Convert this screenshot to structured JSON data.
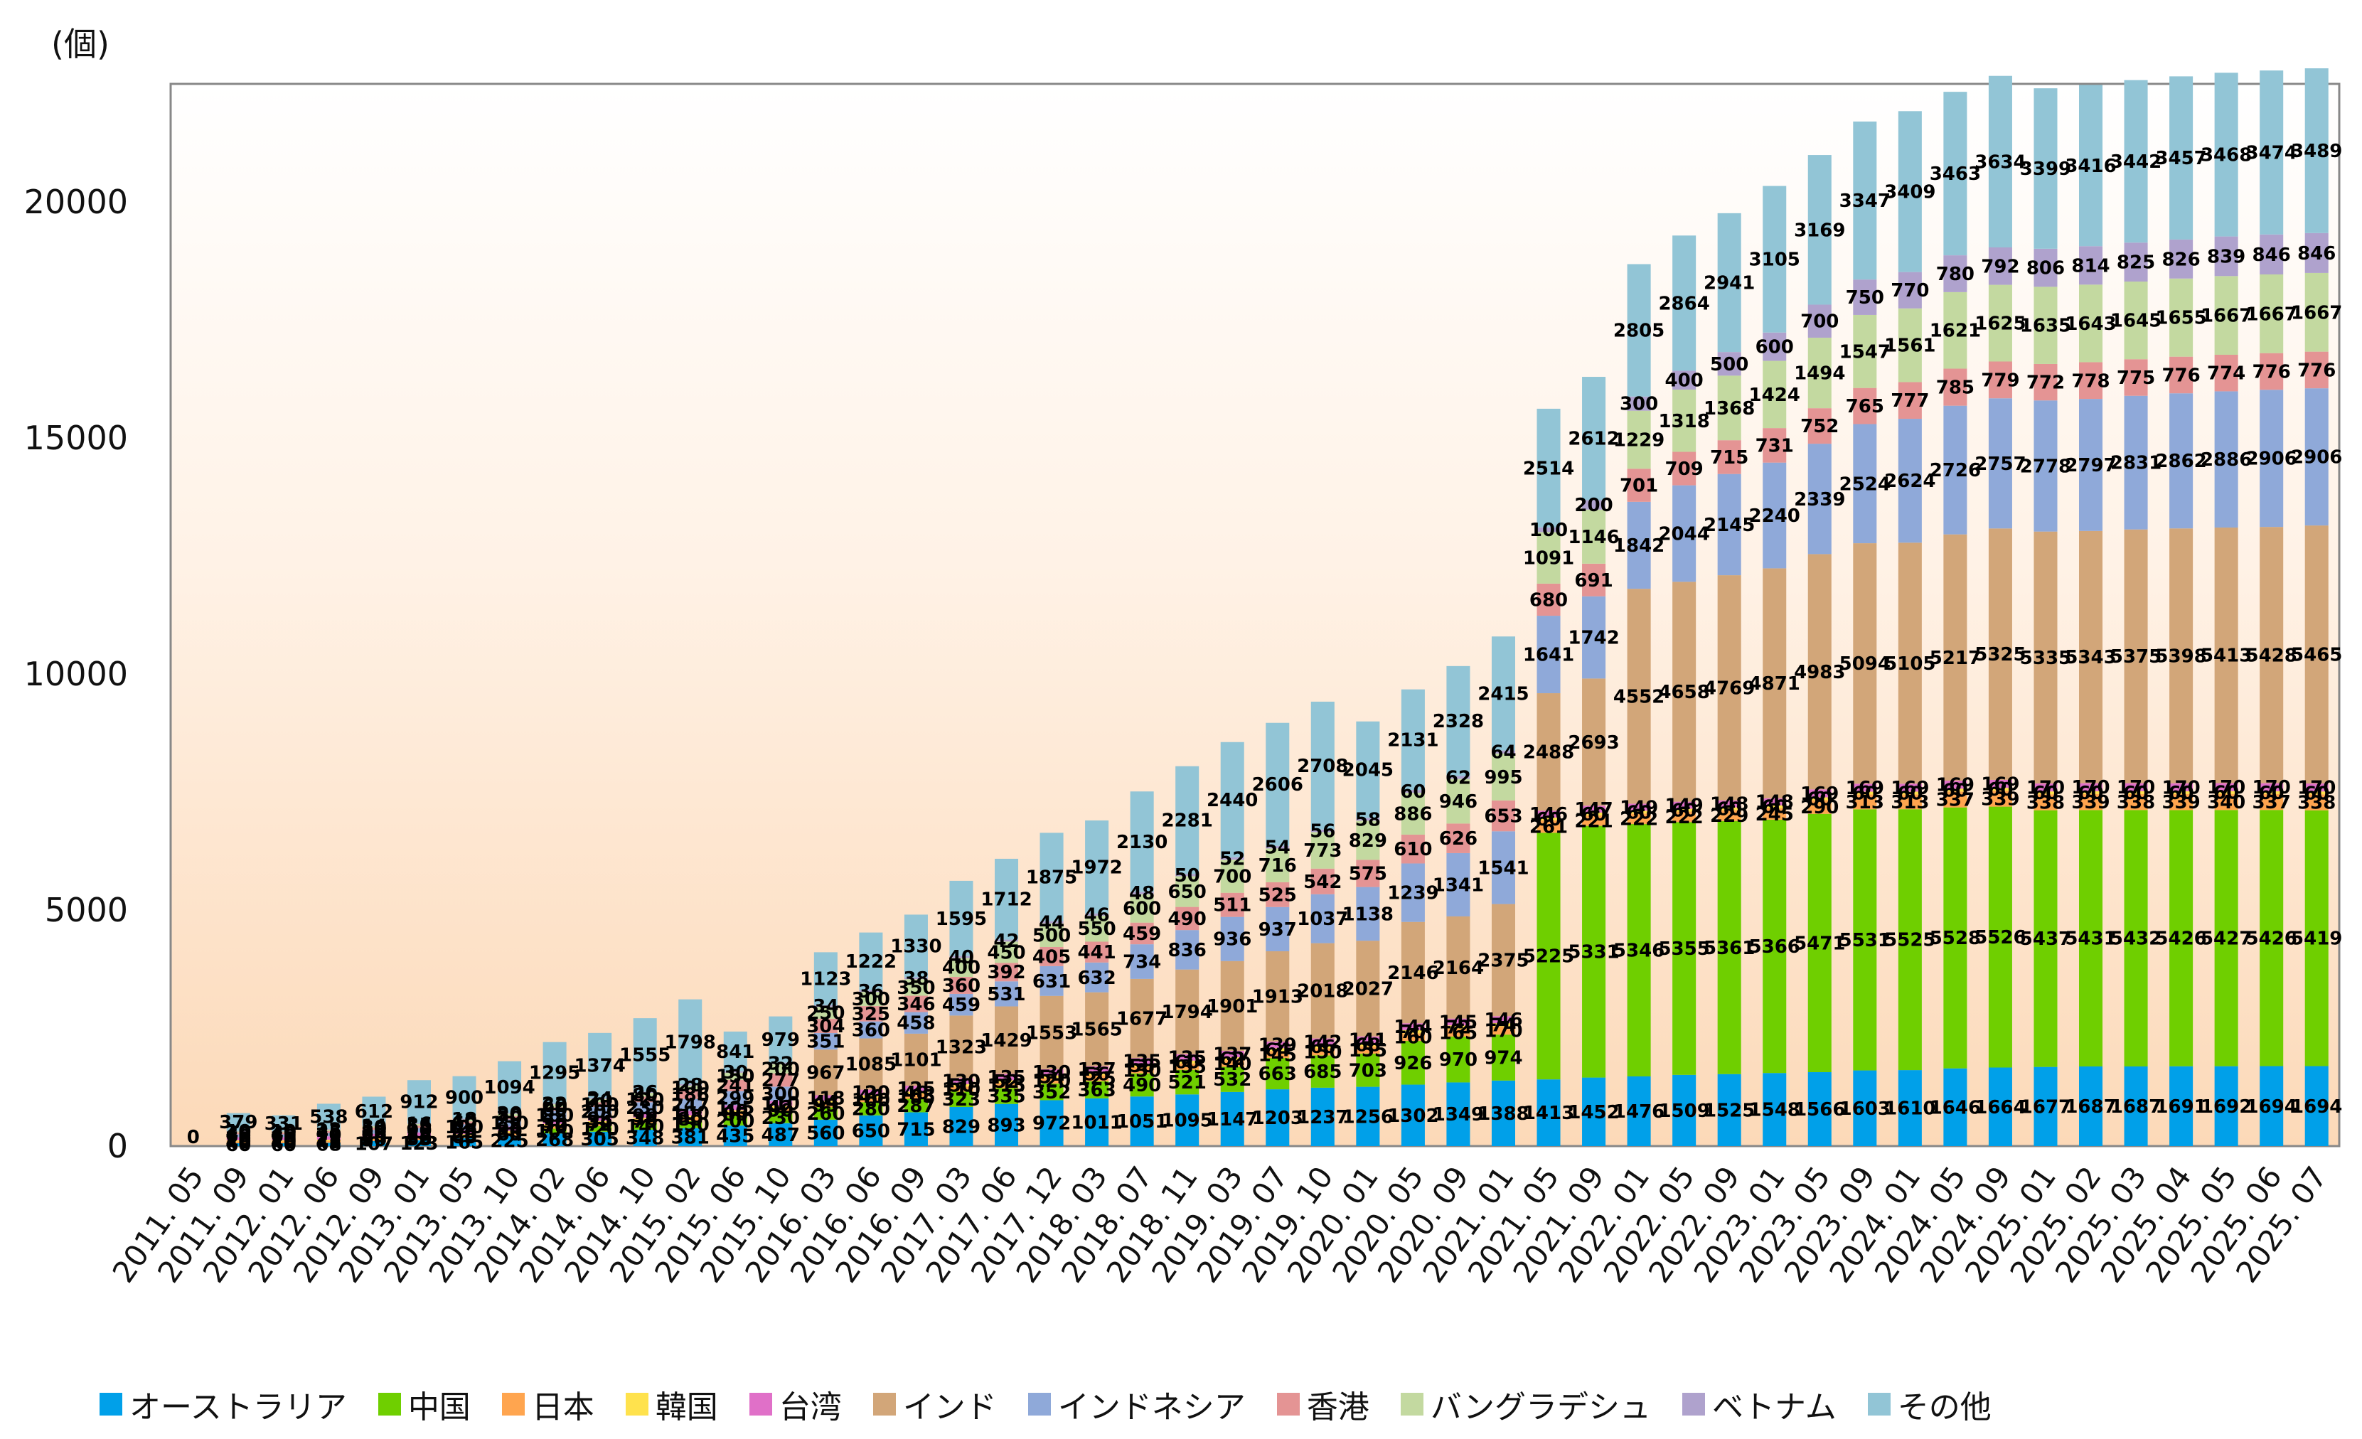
{
  "chart_data": {
    "type": "bar",
    "stacked": true,
    "title": "",
    "unit_label": "(個)",
    "xlabel": "",
    "ylabel": "",
    "ylim": [
      0,
      22500
    ],
    "yticks": [
      0,
      5000,
      10000,
      15000,
      20000
    ],
    "grid": false,
    "legend_position": "bottom",
    "categories": [
      "2011. 05",
      "2011. 09",
      "2012. 01",
      "2012. 06",
      "2012. 09",
      "2013. 01",
      "2013. 05",
      "2013. 10",
      "2014. 02",
      "2014. 06",
      "2014. 10",
      "2015. 02",
      "2015. 06",
      "2015. 10",
      "2016. 03",
      "2016. 06",
      "2016. 09",
      "2017. 03",
      "2017. 06",
      "2017. 12",
      "2018. 03",
      "2018. 07",
      "2018. 11",
      "2019. 03",
      "2019. 07",
      "2019. 10",
      "2020. 01",
      "2020. 05",
      "2020. 09",
      "2021. 01",
      "2021. 05",
      "2021. 09",
      "2022. 01",
      "2022. 05",
      "2022. 09",
      "2023. 01",
      "2023. 05",
      "2023. 09",
      "2024. 01",
      "2024. 05",
      "2024. 09",
      "2025. 01",
      "2025. 02",
      "2025. 03",
      "2025. 04",
      "2025. 05",
      "2025. 06",
      "2025. 07"
    ],
    "x_tick_labels": [
      "2011. 05",
      "2011. 09",
      "2012. 01",
      "2012. 06",
      "2012. 09",
      "2013. 01",
      "2013. 05",
      "2013. 10",
      "2014. 02",
      "2014. 06",
      "2014. 10",
      "2015. 02",
      "2015. 06",
      "2015. 10",
      "2016. 03",
      "2016. 06",
      "2016. 09",
      "2017. 03",
      "2017. 06",
      "2017. 12",
      "2018. 03",
      "2018. 07",
      "2018. 11",
      "2019. 03",
      "2019. 07",
      "2019. 10",
      "2020. 01",
      "2020. 05",
      "2020. 09",
      "2021. 01",
      "2021. 05",
      "2021. 09",
      "2022. 01",
      "2022. 05",
      "2022. 09",
      "2023. 01",
      "2023. 05",
      "2023. 09",
      "2024. 01",
      "2024. 05",
      "2024. 09",
      "2025. 01",
      "2025. 02",
      "2025. 03",
      "2025. 04",
      "2025. 05",
      "2025. 06",
      "2025. 07"
    ],
    "series": [
      {
        "name": "オーストラリア",
        "color": "#00A0E9",
        "values": [
          0,
          60,
          60,
          68,
          107,
          123,
          165,
          225,
          268,
          305,
          348,
          381,
          435,
          487,
          560,
          650,
          715,
          829,
          893,
          972,
          1011,
          1051,
          1095,
          1147,
          1203,
          1237,
          1256,
          1302,
          1349,
          1388,
          1413,
          1452,
          1476,
          1509,
          1525,
          1548,
          1566,
          1603,
          1610,
          1646,
          1664,
          1677,
          1687,
          1687,
          1691,
          1692,
          1694,
          1694
        ]
      },
      {
        "name": "中国",
        "color": "#6FCF00",
        "values": [
          0,
          0,
          0,
          0,
          0,
          0,
          0,
          0,
          100,
          120,
          140,
          150,
          200,
          230,
          260,
          280,
          287,
          323,
          335,
          352,
          363,
          490,
          521,
          532,
          663,
          685,
          703,
          926,
          970,
          974,
          5225,
          5331,
          5346,
          5355,
          5361,
          5366,
          5471,
          5531,
          5525,
          5528,
          5526,
          5437,
          5431,
          5432,
          5426,
          5427,
          5426,
          5419
        ]
      },
      {
        "name": "日本",
        "color": "#FFA54F",
        "values": [
          0,
          40,
          40,
          45,
          50,
          55,
          60,
          65,
          70,
          72,
          75,
          80,
          85,
          90,
          95,
          100,
          105,
          110,
          115,
          120,
          125,
          130,
          135,
          140,
          145,
          150,
          155,
          160,
          165,
          170,
          261,
          221,
          222,
          222,
          229,
          245,
          290,
          313,
          313,
          337,
          339,
          338,
          339,
          338,
          339,
          340,
          337,
          338
        ]
      },
      {
        "name": "韓国",
        "color": "#FFE24D",
        "values": [
          0,
          20,
          20,
          22,
          24,
          26,
          28,
          30,
          32,
          34,
          36,
          38,
          40,
          42,
          44,
          46,
          48,
          50,
          52,
          54,
          56,
          58,
          60,
          62,
          64,
          66,
          68,
          70,
          72,
          74,
          60,
          60,
          60,
          60,
          60,
          60,
          60,
          60,
          60,
          60,
          60,
          60,
          60,
          60,
          60,
          60,
          60,
          60
        ]
      },
      {
        "name": "台湾",
        "color": "#E070C8",
        "values": [
          0,
          70,
          70,
          72,
          80,
          85,
          90,
          94,
          96,
          98,
          99,
          100,
          105,
          110,
          118,
          120,
          125,
          130,
          135,
          130,
          137,
          135,
          135,
          137,
          139,
          142,
          141,
          144,
          145,
          146,
          146,
          147,
          149,
          149,
          148,
          148,
          169,
          169,
          169,
          169,
          169,
          170,
          170,
          170,
          170,
          170,
          170,
          170
        ]
      },
      {
        "name": "インド",
        "color": "#D2A679",
        "values": [
          0,
          0,
          0,
          0,
          0,
          0,
          0,
          0,
          0,
          0,
          0,
          0,
          0,
          0,
          967,
          1085,
          1101,
          1323,
          1429,
          1553,
          1565,
          1677,
          1794,
          1901,
          1913,
          2018,
          2027,
          2146,
          2164,
          2375,
          2488,
          2693,
          4552,
          4658,
          4769,
          4871,
          4983,
          5094,
          5105,
          5217,
          5325,
          5335,
          5343,
          5375,
          5398,
          5413,
          5428,
          5465
        ]
      },
      {
        "name": "インドネシア",
        "color": "#8FA9D9",
        "values": [
          0,
          60,
          60,
          70,
          80,
          90,
          120,
          150,
          180,
          200,
          230,
          247,
          299,
          300,
          351,
          360,
          458,
          459,
          531,
          631,
          632,
          734,
          836,
          936,
          937,
          1037,
          1138,
          1239,
          1341,
          1541,
          1641,
          1742,
          1842,
          2044,
          2145,
          2240,
          2339,
          2524,
          2624,
          2726,
          2757,
          2778,
          2797,
          2831,
          2862,
          2886,
          2906,
          2906
        ]
      },
      {
        "name": "香港",
        "color": "#E49494",
        "values": [
          0,
          40,
          40,
          45,
          50,
          55,
          60,
          70,
          80,
          100,
          120,
          186,
          241,
          277,
          304,
          325,
          346,
          360,
          392,
          405,
          441,
          459,
          490,
          511,
          525,
          542,
          575,
          610,
          626,
          653,
          680,
          691,
          701,
          709,
          715,
          731,
          752,
          765,
          777,
          785,
          779,
          772,
          778,
          775,
          776,
          774,
          776,
          776
        ]
      },
      {
        "name": "バングラデシュ",
        "color": "#C3D9A0",
        "values": [
          0,
          20,
          20,
          25,
          30,
          35,
          40,
          50,
          60,
          70,
          80,
          100,
          150,
          200,
          250,
          300,
          350,
          400,
          450,
          500,
          550,
          600,
          650,
          700,
          716,
          773,
          829,
          886,
          946,
          995,
          1091,
          1146,
          1229,
          1318,
          1368,
          1424,
          1494,
          1547,
          1561,
          1621,
          1625,
          1635,
          1643,
          1645,
          1655,
          1667,
          1667,
          1667
        ]
      },
      {
        "name": "ベトナム",
        "color": "#AFA2CD",
        "values": [
          0,
          10,
          10,
          12,
          14,
          16,
          18,
          20,
          22,
          24,
          26,
          28,
          30,
          32,
          34,
          36,
          38,
          40,
          42,
          44,
          46,
          48,
          50,
          52,
          54,
          56,
          58,
          60,
          62,
          64,
          100,
          200,
          300,
          400,
          500,
          600,
          700,
          750,
          770,
          780,
          792,
          806,
          814,
          825,
          826,
          839,
          846,
          846
        ]
      },
      {
        "name": "その他",
        "color": "#92C5D6",
        "values": [
          0,
          379,
          331,
          538,
          612,
          912,
          900,
          1094,
          1295,
          1374,
          1555,
          1798,
          841,
          979,
          1123,
          1222,
          1330,
          1595,
          1712,
          1875,
          1972,
          2130,
          2281,
          2440,
          2606,
          2708,
          2045,
          2131,
          2328,
          2415,
          2514,
          2612,
          2805,
          2864,
          2941,
          3105,
          3169,
          3347,
          3409,
          3463,
          3634,
          3399,
          3416,
          3442,
          3457,
          3468,
          3474,
          3489
        ]
      }
    ]
  }
}
